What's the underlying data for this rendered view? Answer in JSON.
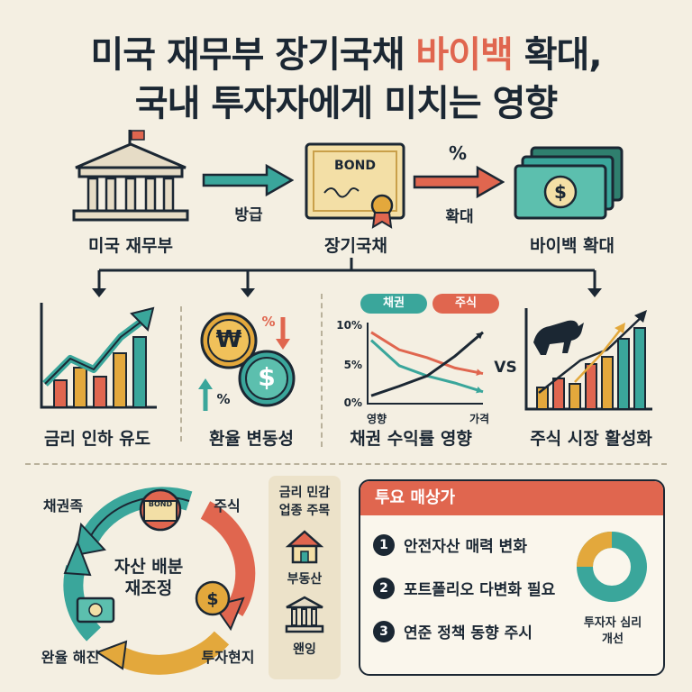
{
  "title": {
    "line1_pre": "미국 재무부 장기국채 ",
    "line1_highlight": "바이백",
    "line1_post": " 확대,",
    "line2": "국내 투자자에게 미치는 영향"
  },
  "flow": {
    "treasury_label": "미국 재무부",
    "arrow1_label": "방급",
    "bond_text": "BOND",
    "bond_label": "장기국채",
    "arrow2_top": "%",
    "arrow2_label": "확대",
    "buyback_label": "바이백 확대"
  },
  "panels": {
    "rate_label": "금리 인하 유도",
    "fx_label": "환율 변동성",
    "fx_currency1": "₩",
    "fx_currency2": "$",
    "fx_pct1": "%",
    "fx_pct2": "%",
    "yield_label": "채권 수익률 영향",
    "stock_label": "주식 시장 활성화",
    "vs": "VS"
  },
  "chart_data": {
    "type": "line",
    "legend": [
      "채권",
      "주식"
    ],
    "yticks": [
      "10%",
      "5%",
      "0%"
    ],
    "xlabels": [
      "영향",
      "가격"
    ],
    "ylim": [
      0,
      10
    ],
    "series": [
      {
        "name": "채권",
        "values": [
          8.0,
          4.8,
          3.5,
          2.6,
          1.5
        ]
      },
      {
        "name": "주식",
        "values": [
          9.0,
          6.8,
          5.8,
          4.5,
          3.8
        ]
      },
      {
        "name": "",
        "values": [
          1.0,
          2.2,
          3.5,
          6.0,
          9.0
        ]
      }
    ],
    "colors": {
      "bond": "#3aa69b",
      "stock": "#e0664f",
      "rise": "#1b2733"
    }
  },
  "cycle": {
    "center_line1": "자산 배분",
    "center_line2": "재조정",
    "label_bond": "채권족",
    "label_stock": "주식",
    "label_fx": "완율 해진",
    "label_invest": "투자현지",
    "bond_text": "BOND"
  },
  "side": {
    "heading_line1": "금리 민감",
    "heading_line2": "업종 주목",
    "realestate": "부동산",
    "banking": "왠잉"
  },
  "watch": {
    "heading": "투요 매상가",
    "items": [
      {
        "num": "1",
        "text": "안전자산 매력 변화"
      },
      {
        "num": "2",
        "text": "포트폴리오 다변화 필요"
      },
      {
        "num": "3",
        "text": "연준 정책 동향 주시"
      }
    ],
    "donut_label_line1": "투자자 심리",
    "donut_label_line2": "개선"
  },
  "colors": {
    "background": "#f4efe2",
    "navy": "#1b2733",
    "teal": "#3aa69b",
    "coral": "#e0664f",
    "gold": "#e3a83c",
    "cream": "#ece2c9"
  }
}
